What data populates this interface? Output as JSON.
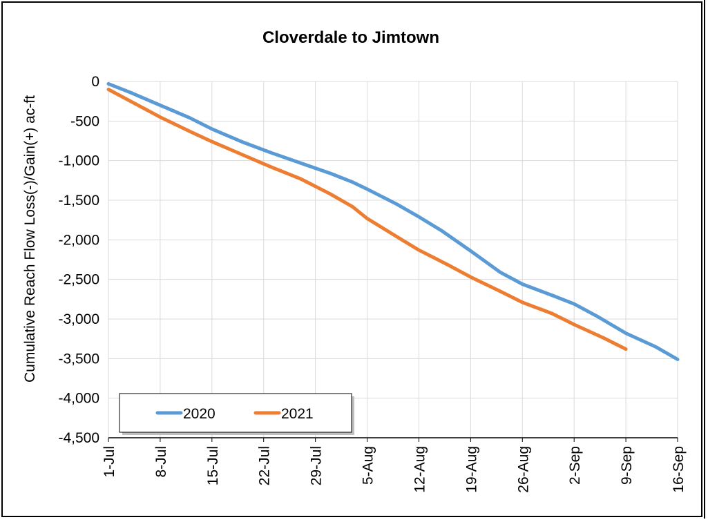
{
  "chart_data": {
    "type": "line",
    "title": "Cloverdale to Jimtown",
    "xlabel": "",
    "ylabel": "Cumulative Reach Flow Loss(-)/Gain(+) ac-ft",
    "x_ticks": [
      "1-Jul",
      "8-Jul",
      "15-Jul",
      "22-Jul",
      "29-Jul",
      "5-Aug",
      "12-Aug",
      "19-Aug",
      "26-Aug",
      "2-Sep",
      "9-Sep",
      "16-Sep"
    ],
    "x_tick_dates": [
      "2020-07-01",
      "2020-07-08",
      "2020-07-15",
      "2020-07-22",
      "2020-07-29",
      "2020-08-05",
      "2020-08-12",
      "2020-08-19",
      "2020-08-26",
      "2020-09-02",
      "2020-09-09",
      "2020-09-16"
    ],
    "xlim": [
      "2020-07-01",
      "2020-09-16"
    ],
    "ylim": [
      -4500,
      0
    ],
    "y_ticks": [
      0,
      -500,
      -1000,
      -1500,
      -2000,
      -2500,
      -3000,
      -3500,
      -4000,
      -4500
    ],
    "y_tick_labels": [
      "0",
      "-500",
      "-1,000",
      "-1,500",
      "-2,000",
      "-2,500",
      "-3,000",
      "-3,500",
      "-4,000",
      "-4,500"
    ],
    "grid": true,
    "legend_position": "bottom-left",
    "series": [
      {
        "name": "2020",
        "color": "#5b9bd5",
        "x": [
          "2020-07-01",
          "2020-07-04",
          "2020-07-08",
          "2020-07-12",
          "2020-07-15",
          "2020-07-19",
          "2020-07-23",
          "2020-07-27",
          "2020-07-31",
          "2020-08-03",
          "2020-08-05",
          "2020-08-09",
          "2020-08-12",
          "2020-08-15",
          "2020-08-19",
          "2020-08-23",
          "2020-08-26",
          "2020-08-30",
          "2020-09-02",
          "2020-09-05",
          "2020-09-09",
          "2020-09-13",
          "2020-09-16"
        ],
        "y": [
          -30,
          -140,
          -300,
          -460,
          -600,
          -760,
          -900,
          -1030,
          -1160,
          -1270,
          -1360,
          -1550,
          -1710,
          -1880,
          -2140,
          -2410,
          -2560,
          -2700,
          -2810,
          -2960,
          -3180,
          -3350,
          -3510
        ]
      },
      {
        "name": "2021",
        "color": "#ed7d31",
        "x": [
          "2021-07-01",
          "2021-07-04",
          "2021-07-08",
          "2021-07-12",
          "2021-07-15",
          "2021-07-19",
          "2021-07-23",
          "2021-07-27",
          "2021-07-31",
          "2021-08-03",
          "2021-08-05",
          "2021-08-09",
          "2021-08-12",
          "2021-08-16",
          "2021-08-19",
          "2021-08-23",
          "2021-08-26",
          "2021-08-30",
          "2021-09-02",
          "2021-09-06",
          "2021-09-09"
        ],
        "y": [
          -100,
          -250,
          -450,
          -630,
          -760,
          -920,
          -1080,
          -1230,
          -1420,
          -1580,
          -1730,
          -1960,
          -2130,
          -2320,
          -2470,
          -2650,
          -2790,
          -2930,
          -3070,
          -3240,
          -3380
        ]
      }
    ]
  }
}
